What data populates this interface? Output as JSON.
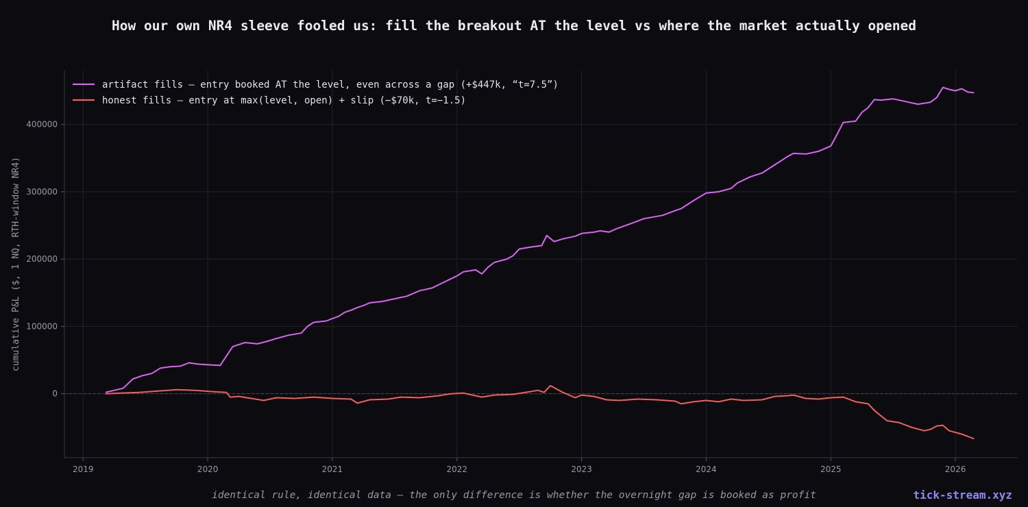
{
  "title": "How our own NR4 sleeve fooled us: fill the breakout AT the level vs where the market actually opened",
  "footer": "identical rule, identical data — the only difference is whether the overnight gap is booked as profit",
  "brand": "tick-stream.xyz",
  "colors": {
    "background": "#0c0b10",
    "artifact": "#d966f2",
    "honest": "#f2605a",
    "grid": "#23222b",
    "zero_line": "#4a4a52"
  },
  "chart_data": {
    "type": "line",
    "ylabel": "cumulative P&L ($, 1 NQ, RTH-window NR4)",
    "xlim": [
      2018.85,
      2026.5
    ],
    "ylim": [
      -95000,
      480000
    ],
    "xticks": [
      2019,
      2020,
      2021,
      2022,
      2023,
      2024,
      2025,
      2026
    ],
    "yticks": [
      0,
      100000,
      200000,
      300000,
      400000
    ],
    "grid": true,
    "zero_reference_line": true,
    "legend_position": "top-left",
    "series": [
      {
        "name": "artifact fills — entry booked AT the level, even across a gap  (+$447k, “t=7.5”)",
        "color": "#d966f2",
        "x": [
          2019.18,
          2019.25,
          2019.32,
          2019.4,
          2019.48,
          2019.55,
          2019.62,
          2019.7,
          2019.78,
          2019.85,
          2019.92,
          2020.0,
          2020.1,
          2020.15,
          2020.2,
          2020.25,
          2020.3,
          2020.4,
          2020.48,
          2020.55,
          2020.65,
          2020.75,
          2020.8,
          2020.85,
          2020.95,
          2021.05,
          2021.1,
          2021.15,
          2021.2,
          2021.25,
          2021.3,
          2021.4,
          2021.5,
          2021.6,
          2021.7,
          2021.8,
          2021.9,
          2022.0,
          2022.05,
          2022.15,
          2022.2,
          2022.25,
          2022.3,
          2022.4,
          2022.45,
          2022.5,
          2022.6,
          2022.68,
          2022.72,
          2022.78,
          2022.85,
          2022.95,
          2023.0,
          2023.1,
          2023.15,
          2023.22,
          2023.28,
          2023.4,
          2023.5,
          2023.65,
          2023.75,
          2023.8,
          2023.9,
          2024.0,
          2024.1,
          2024.2,
          2024.25,
          2024.35,
          2024.45,
          2024.55,
          2024.65,
          2024.7,
          2024.8,
          2024.9,
          2025.0,
          2025.05,
          2025.1,
          2025.2,
          2025.25,
          2025.3,
          2025.35,
          2025.4,
          2025.5,
          2025.6,
          2025.7,
          2025.8,
          2025.85,
          2025.9,
          2025.95,
          2026.0,
          2026.05,
          2026.1,
          2026.15
        ],
        "y": [
          2000,
          5000,
          8000,
          22000,
          27000,
          30000,
          38000,
          40000,
          41000,
          46000,
          44000,
          43000,
          42000,
          56000,
          70000,
          73000,
          76000,
          74000,
          78000,
          82000,
          87000,
          90000,
          100000,
          106000,
          108000,
          115000,
          121000,
          124000,
          128000,
          131000,
          135000,
          137000,
          141000,
          145000,
          153000,
          157000,
          166000,
          175000,
          181000,
          184000,
          178000,
          188000,
          195000,
          200000,
          205000,
          215000,
          218000,
          220000,
          235000,
          226000,
          230000,
          234000,
          238000,
          240000,
          242000,
          240000,
          245000,
          253000,
          260000,
          265000,
          272000,
          275000,
          287000,
          298000,
          300000,
          305000,
          313000,
          322000,
          328000,
          340000,
          352000,
          357000,
          356000,
          360000,
          368000,
          385000,
          403000,
          405000,
          418000,
          425000,
          437000,
          436000,
          438000,
          434000,
          430000,
          433000,
          440000,
          455000,
          452000,
          450000,
          453000,
          448000,
          447000
        ]
      },
      {
        "name": "honest fills — entry at max(level, open) + slip  (−$70k, t=−1.5)",
        "color": "#f2605a",
        "x": [
          2019.18,
          2019.3,
          2019.45,
          2019.6,
          2019.75,
          2019.9,
          2020.05,
          2020.15,
          2020.18,
          2020.25,
          2020.35,
          2020.45,
          2020.55,
          2020.7,
          2020.85,
          2021.0,
          2021.15,
          2021.2,
          2021.3,
          2021.45,
          2021.55,
          2021.7,
          2021.85,
          2021.95,
          2022.05,
          2022.15,
          2022.2,
          2022.3,
          2022.45,
          2022.55,
          2022.65,
          2022.7,
          2022.75,
          2022.85,
          2022.95,
          2023.0,
          2023.1,
          2023.2,
          2023.3,
          2023.45,
          2023.6,
          2023.75,
          2023.8,
          2023.9,
          2024.0,
          2024.1,
          2024.2,
          2024.3,
          2024.45,
          2024.55,
          2024.65,
          2024.7,
          2024.8,
          2024.9,
          2025.0,
          2025.1,
          2025.2,
          2025.3,
          2025.35,
          2025.45,
          2025.55,
          2025.65,
          2025.75,
          2025.8,
          2025.85,
          2025.9,
          2025.95,
          2026.05,
          2026.15
        ],
        "y": [
          0,
          1000,
          2000,
          4000,
          6000,
          5000,
          3000,
          2000,
          -5000,
          -4000,
          -7000,
          -10000,
          -6000,
          -7000,
          -5000,
          -7000,
          -8000,
          -14000,
          -9000,
          -8000,
          -5000,
          -6000,
          -3000,
          0,
          1000,
          -3000,
          -5000,
          -2000,
          -1000,
          2000,
          5000,
          2000,
          12000,
          2000,
          -6000,
          -2000,
          -4000,
          -9000,
          -10000,
          -8000,
          -9000,
          -11000,
          -15000,
          -12000,
          -10000,
          -12000,
          -8000,
          -10000,
          -9000,
          -4000,
          -3000,
          -2000,
          -7000,
          -8000,
          -6000,
          -5000,
          -12000,
          -15000,
          -25000,
          -40000,
          -43000,
          -50000,
          -55000,
          -53000,
          -48000,
          -47000,
          -55000,
          -60000,
          -67000
        ]
      }
    ]
  }
}
